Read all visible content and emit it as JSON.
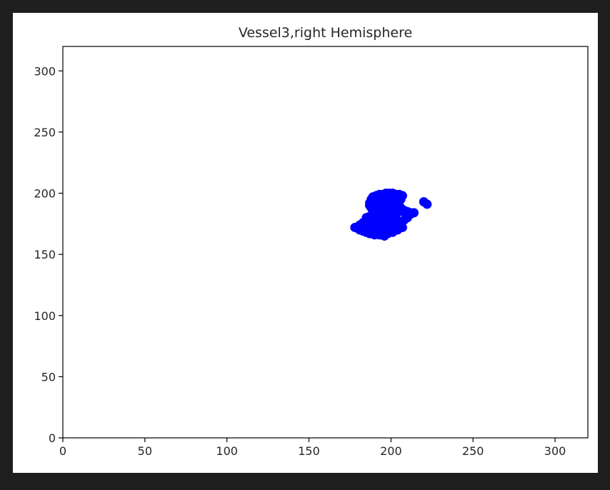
{
  "chart_data": {
    "type": "scatter",
    "title": "Vessel3,right Hemisphere",
    "xlabel": "",
    "ylabel": "",
    "xlim": [
      0,
      320
    ],
    "ylim": [
      0,
      320
    ],
    "xticks": [
      0,
      50,
      100,
      150,
      200,
      250,
      300
    ],
    "yticks": [
      0,
      50,
      100,
      150,
      200,
      250,
      300
    ],
    "grid": false,
    "marker_color": "#0000ff",
    "series": [
      {
        "x": [
          178,
          181,
          183,
          185,
          187,
          188,
          190,
          191,
          193,
          194,
          196,
          197,
          199,
          200,
          202,
          203,
          205,
          206,
          208,
          210,
          212,
          214,
          186,
          189,
          192,
          195,
          198,
          201,
          204,
          207,
          189,
          191,
          193,
          195,
          197,
          199,
          201,
          203,
          205,
          207,
          188,
          190,
          192,
          194,
          196,
          198,
          200,
          202,
          204,
          206,
          209,
          211,
          187,
          189,
          191,
          193,
          195,
          197,
          199,
          201,
          203,
          205,
          208,
          210,
          212,
          188,
          190,
          192,
          194,
          196,
          198,
          200,
          202,
          204,
          206,
          189,
          191,
          193,
          195,
          197,
          199,
          201,
          203,
          205,
          185,
          187,
          189,
          191,
          193,
          195,
          197,
          199,
          201,
          203,
          183,
          185,
          187,
          189,
          191,
          193,
          195,
          197,
          199,
          201,
          181,
          183,
          185,
          187,
          189,
          191,
          193,
          195,
          197,
          180,
          184,
          188,
          192,
          196,
          200,
          187,
          191,
          195,
          199,
          203,
          220,
          222
        ],
        "y": [
          172,
          170,
          169,
          168,
          167,
          167,
          166,
          167,
          166,
          166,
          165,
          167,
          168,
          169,
          171,
          172,
          174,
          176,
          178,
          180,
          183,
          184,
          170,
          169,
          168,
          168,
          167,
          168,
          170,
          172,
          197,
          198,
          199,
          199,
          200,
          200,
          200,
          199,
          199,
          198,
          195,
          196,
          197,
          197,
          198,
          198,
          198,
          197,
          196,
          195,
          183,
          182,
          192,
          193,
          194,
          195,
          195,
          196,
          196,
          195,
          194,
          193,
          186,
          185,
          184,
          188,
          189,
          190,
          190,
          191,
          191,
          191,
          190,
          189,
          188,
          184,
          185,
          186,
          186,
          187,
          187,
          187,
          186,
          185,
          180,
          181,
          182,
          183,
          183,
          183,
          183,
          182,
          181,
          180,
          176,
          177,
          178,
          178,
          179,
          179,
          179,
          178,
          177,
          176,
          174,
          174,
          175,
          175,
          176,
          176,
          176,
          175,
          175,
          171,
          172,
          173,
          173,
          173,
          174,
          190,
          191,
          192,
          193,
          193,
          193,
          191
        ]
      }
    ]
  }
}
